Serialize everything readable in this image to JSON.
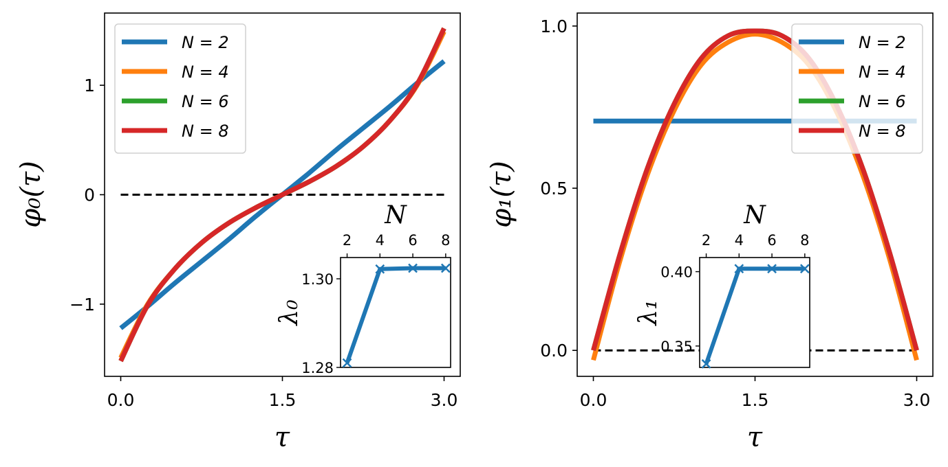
{
  "chart_data": [
    {
      "type": "line",
      "xlabel": "τ",
      "ylabel": "φ₀(τ)",
      "xlim": [
        -0.15,
        3.15
      ],
      "ylim": [
        -1.66,
        1.66
      ],
      "xticks": [
        0.0,
        1.5,
        3.0
      ],
      "xtick_labels": [
        "0.0",
        "1.5",
        "3.0"
      ],
      "yticks": [
        -1,
        0,
        1
      ],
      "ytick_labels": [
        "−1",
        "0",
        "1"
      ],
      "legend_position": "top-left",
      "x": [
        0.0,
        0.25,
        0.5,
        0.75,
        1.0,
        1.25,
        1.5,
        1.75,
        2.0,
        2.25,
        2.5,
        2.75,
        3.0
      ],
      "series": [
        {
          "name": "N = 2",
          "color": "#1f77b4",
          "values": [
            -1.22,
            -1.02,
            -0.81,
            -0.61,
            -0.41,
            -0.2,
            0.0,
            0.2,
            0.41,
            0.61,
            0.81,
            1.02,
            1.22
          ]
        },
        {
          "name": "N = 4",
          "color": "#ff7f0e",
          "values": [
            -1.49,
            -1.0,
            -0.68,
            -0.44,
            -0.26,
            -0.12,
            0.0,
            0.12,
            0.26,
            0.44,
            0.68,
            1.0,
            1.49
          ]
        },
        {
          "name": "N = 6",
          "color": "#2ca02c",
          "values": [
            -1.52,
            -1.01,
            -0.68,
            -0.44,
            -0.26,
            -0.12,
            0.0,
            0.12,
            0.26,
            0.44,
            0.68,
            1.01,
            1.52
          ]
        },
        {
          "name": "N = 8",
          "color": "#d62728",
          "values": [
            -1.52,
            -1.01,
            -0.68,
            -0.44,
            -0.26,
            -0.12,
            0.0,
            0.12,
            0.26,
            0.44,
            0.68,
            1.01,
            1.52
          ]
        }
      ],
      "reference_line": {
        "y": 0,
        "style": "dashed",
        "x_range": [
          0.0,
          3.0
        ]
      },
      "inset": {
        "type": "line",
        "xlabel": "N",
        "ylabel": "λ₀",
        "x": [
          2,
          4,
          6,
          8
        ],
        "values": [
          1.281,
          1.3022,
          1.3024,
          1.3024
        ],
        "xlim": [
          1.6,
          8.3
        ],
        "ylim": [
          1.28,
          1.3048
        ],
        "xticks": [
          2,
          4,
          6,
          8
        ],
        "xtick_labels": [
          "2",
          "4",
          "6",
          "8"
        ],
        "yticks": [
          1.28,
          1.3
        ],
        "ytick_labels": [
          "1.28",
          "1.30"
        ],
        "xaxis_position": "top",
        "color": "#1f77b4",
        "marker": "x"
      }
    },
    {
      "type": "line",
      "xlabel": "τ",
      "ylabel": "φ₁(τ)",
      "xlim": [
        -0.15,
        3.15
      ],
      "ylim": [
        -0.08,
        1.04
      ],
      "xticks": [
        0.0,
        1.5,
        3.0
      ],
      "xtick_labels": [
        "0.0",
        "1.5",
        "3.0"
      ],
      "yticks": [
        0.0,
        0.5,
        1.0
      ],
      "ytick_labels": [
        "0.0",
        "0.5",
        "1.0"
      ],
      "legend_position": "top-right",
      "x": [
        0.0,
        0.25,
        0.5,
        0.75,
        1.0,
        1.25,
        1.5,
        1.75,
        2.0,
        2.25,
        2.5,
        2.75,
        3.0
      ],
      "series": [
        {
          "name": "N = 2",
          "color": "#1f77b4",
          "values": [
            0.707,
            0.707,
            0.707,
            0.707,
            0.707,
            0.707,
            0.707,
            0.707,
            0.707,
            0.707,
            0.707,
            0.707,
            0.707
          ]
        },
        {
          "name": "N = 4",
          "color": "#ff7f0e",
          "values": [
            -0.03,
            0.28,
            0.54,
            0.74,
            0.88,
            0.95,
            0.975,
            0.95,
            0.88,
            0.74,
            0.54,
            0.28,
            -0.03
          ]
        },
        {
          "name": "N = 6",
          "color": "#2ca02c",
          "values": [
            0.0,
            0.3,
            0.56,
            0.76,
            0.9,
            0.97,
            0.985,
            0.97,
            0.9,
            0.76,
            0.56,
            0.3,
            0.0
          ]
        },
        {
          "name": "N = 8",
          "color": "#d62728",
          "values": [
            0.0,
            0.3,
            0.56,
            0.76,
            0.9,
            0.97,
            0.985,
            0.97,
            0.9,
            0.76,
            0.56,
            0.3,
            0.0
          ]
        }
      ],
      "reference_line": {
        "y": 0,
        "style": "dashed",
        "x_range": [
          0.0,
          3.0
        ]
      },
      "inset": {
        "type": "line",
        "xlabel": "N",
        "ylabel": "λ₁",
        "x": [
          2,
          4,
          6,
          8
        ],
        "values": [
          0.338,
          0.402,
          0.402,
          0.402
        ],
        "xlim": [
          1.6,
          8.3
        ],
        "ylim": [
          0.3356,
          0.4095
        ],
        "xticks": [
          2,
          4,
          6,
          8
        ],
        "xtick_labels": [
          "2",
          "4",
          "6",
          "8"
        ],
        "yticks": [
          0.35,
          0.4
        ],
        "ytick_labels": [
          "0.35",
          "0.40"
        ],
        "xaxis_position": "top",
        "color": "#1f77b4",
        "marker": "x"
      }
    }
  ]
}
